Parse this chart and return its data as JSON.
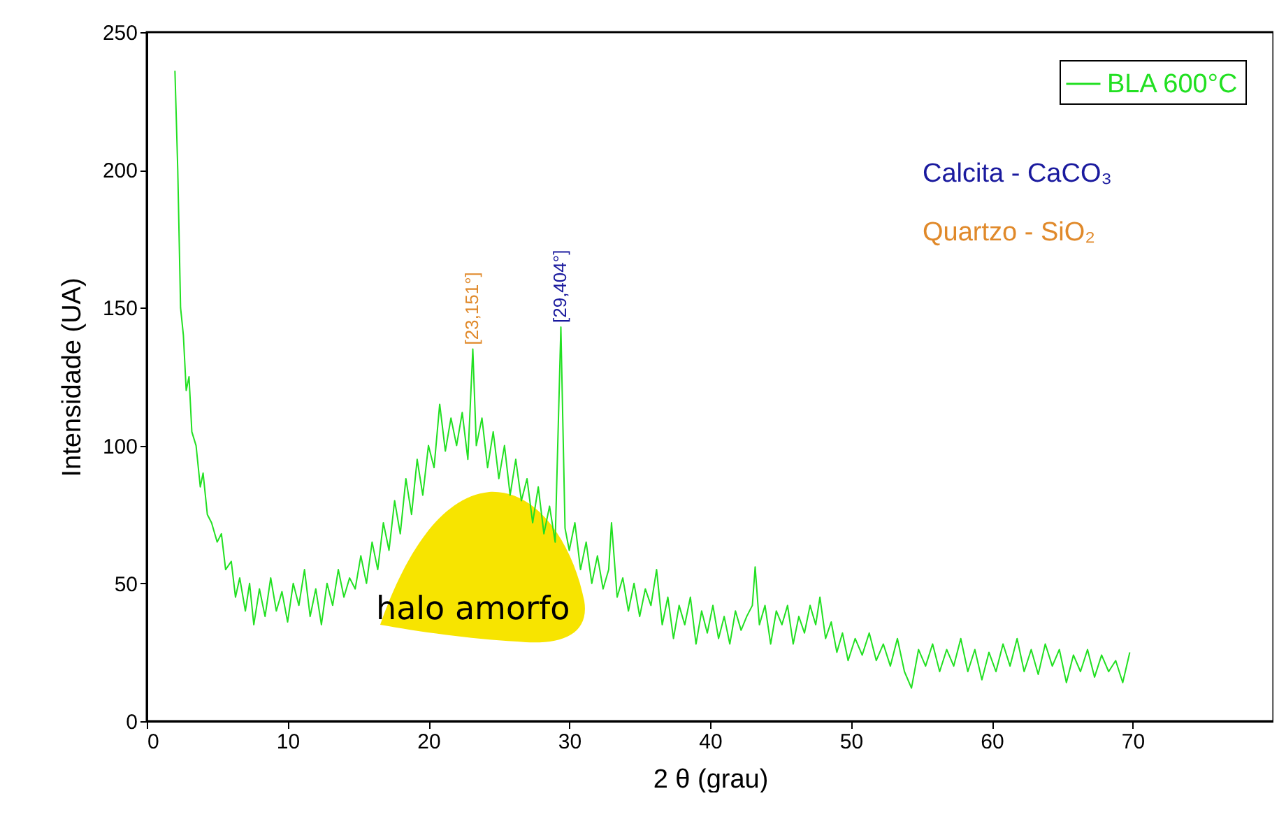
{
  "chart_data": {
    "type": "line",
    "xlabel": "2 θ (grau)",
    "ylabel": "Intensidade (UA)",
    "xlim": [
      0,
      80
    ],
    "xticks": [
      0,
      10,
      20,
      30,
      40,
      50,
      60,
      70
    ],
    "ylim": [
      0,
      250
    ],
    "yticks": [
      0,
      50,
      100,
      150,
      200,
      250
    ],
    "legend": "top right",
    "grid": false,
    "annotations": [
      "Calcita - CaCO₃",
      "Quartzo - SiO₂",
      "halo amorfo",
      {
        "text": "[23,151°]",
        "x": 23.151,
        "y": 135
      },
      {
        "text": "[29,404°]",
        "x": 29.404,
        "y": 143
      }
    ],
    "series": [
      {
        "name": "BLA 600°C",
        "color": "#22e022",
        "x": [
          2,
          2.2,
          2.4,
          2.6,
          2.8,
          3,
          3.2,
          3.5,
          3.8,
          4,
          4.3,
          4.6,
          5,
          5.3,
          5.6,
          6,
          6.3,
          6.6,
          7,
          7.3,
          7.6,
          8,
          8.4,
          8.8,
          9.2,
          9.6,
          10,
          10.4,
          10.8,
          11.2,
          11.6,
          12,
          12.4,
          12.8,
          13.2,
          13.6,
          14,
          14.4,
          14.8,
          15.2,
          15.6,
          16,
          16.4,
          16.8,
          17.2,
          17.6,
          18,
          18.4,
          18.8,
          19.2,
          19.6,
          20,
          20.4,
          20.8,
          21.2,
          21.6,
          22,
          22.4,
          22.8,
          23.151,
          23.4,
          23.8,
          24.2,
          24.6,
          25,
          25.4,
          25.8,
          26.2,
          26.6,
          27,
          27.4,
          27.8,
          28.2,
          28.6,
          29,
          29.404,
          29.7,
          30,
          30.4,
          30.8,
          31.2,
          31.6,
          32,
          32.4,
          32.8,
          33,
          33.4,
          33.8,
          34.2,
          34.6,
          35,
          35.4,
          35.8,
          36.2,
          36.6,
          37,
          37.4,
          37.8,
          38.2,
          38.6,
          39,
          39.4,
          39.8,
          40.2,
          40.6,
          41,
          41.4,
          41.8,
          42.2,
          42.6,
          43,
          43.2,
          43.5,
          43.9,
          44.3,
          44.7,
          45.1,
          45.5,
          45.9,
          46.3,
          46.7,
          47.1,
          47.5,
          47.8,
          48.2,
          48.6,
          49,
          49.4,
          49.8,
          50.3,
          50.8,
          51.3,
          51.8,
          52.3,
          52.8,
          53.3,
          53.8,
          54.3,
          54.8,
          55.3,
          55.8,
          56.3,
          56.8,
          57.3,
          57.8,
          58.3,
          58.8,
          59.3,
          59.8,
          60.3,
          60.8,
          61.3,
          61.8,
          62.3,
          62.8,
          63.3,
          63.8,
          64.3,
          64.8,
          65.3,
          65.8,
          66.3,
          66.8,
          67.3,
          67.8,
          68.3,
          68.8,
          69.3,
          69.8
        ],
        "values": [
          236,
          200,
          150,
          140,
          120,
          125,
          105,
          100,
          85,
          90,
          75,
          72,
          65,
          68,
          55,
          58,
          45,
          52,
          40,
          50,
          35,
          48,
          38,
          52,
          40,
          47,
          36,
          50,
          42,
          55,
          38,
          48,
          35,
          50,
          42,
          55,
          45,
          52,
          48,
          60,
          50,
          65,
          55,
          72,
          62,
          80,
          68,
          88,
          75,
          95,
          82,
          100,
          92,
          115,
          98,
          110,
          100,
          112,
          95,
          135,
          100,
          110,
          92,
          105,
          88,
          100,
          82,
          95,
          80,
          88,
          72,
          85,
          68,
          78,
          65,
          143,
          70,
          62,
          72,
          55,
          65,
          50,
          60,
          48,
          55,
          72,
          45,
          52,
          40,
          50,
          38,
          48,
          42,
          55,
          35,
          45,
          30,
          42,
          35,
          45,
          28,
          40,
          32,
          42,
          30,
          38,
          28,
          40,
          33,
          38,
          42,
          56,
          35,
          42,
          28,
          40,
          35,
          42,
          28,
          38,
          32,
          42,
          35,
          45,
          30,
          36,
          25,
          32,
          22,
          30,
          24,
          32,
          22,
          28,
          20,
          30,
          18,
          12,
          26,
          20,
          28,
          18,
          26,
          20,
          30,
          18,
          26,
          15,
          25,
          18,
          28,
          20,
          30,
          18,
          26,
          17,
          28,
          20,
          26,
          14,
          24,
          18,
          26,
          16,
          24,
          18,
          22,
          14,
          25
        ]
      }
    ]
  }
}
